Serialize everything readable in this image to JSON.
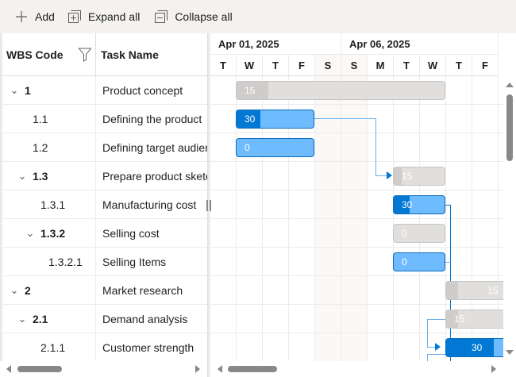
{
  "toolbar": {
    "add_label": "Add",
    "expand_all_label": "Expand all",
    "collapse_all_label": "Collapse all"
  },
  "grid": {
    "columns": [
      {
        "label": "WBS Code",
        "filter_icon": "filter-icon"
      },
      {
        "label": "Task Name"
      }
    ],
    "rows": [
      {
        "wbs": "1",
        "task": "Product concept",
        "level": 0,
        "expanded": true,
        "parent": true
      },
      {
        "wbs": "1.1",
        "task": "Defining the product",
        "level": 1,
        "parent": false
      },
      {
        "wbs": "1.2",
        "task": "Defining target audience",
        "level": 1,
        "parent": false
      },
      {
        "wbs": "1.3",
        "task": "Prepare product sketch",
        "level": 1,
        "expanded": true,
        "parent": true
      },
      {
        "wbs": "1.3.1",
        "task": "Manufacturing cost",
        "level": 2,
        "parent": false
      },
      {
        "wbs": "1.3.2",
        "task": "Selling cost",
        "level": 2,
        "expanded": true,
        "parent": true
      },
      {
        "wbs": "1.3.2.1",
        "task": "Selling Items",
        "level": 3,
        "parent": false
      },
      {
        "wbs": "2",
        "task": "Market research",
        "level": 0,
        "expanded": true,
        "parent": true
      },
      {
        "wbs": "2.1",
        "task": "Demand analysis",
        "level": 1,
        "expanded": true,
        "parent": true
      },
      {
        "wbs": "2.1.1",
        "task": "Customer strength",
        "level": 2,
        "parent": false
      }
    ]
  },
  "timeline": {
    "weeks": [
      {
        "label": "Apr 01, 2025",
        "days": 5
      },
      {
        "label": "Apr 06, 2025",
        "days": 6
      }
    ],
    "days": [
      "T",
      "W",
      "T",
      "F",
      "S",
      "S",
      "M",
      "T",
      "W",
      "T",
      "F"
    ],
    "weekend_indices": [
      4,
      5
    ]
  },
  "bars": [
    {
      "row": 0,
      "type": "parent",
      "progress": "15",
      "start": 1,
      "span": 8,
      "progress_frac": 0.15
    },
    {
      "row": 1,
      "type": "child",
      "progress": "30",
      "start": 1,
      "span": 3,
      "progress_frac": 0.3
    },
    {
      "row": 2,
      "type": "child",
      "progress": "0",
      "start": 1,
      "span": 3,
      "progress_frac": 0
    },
    {
      "row": 3,
      "type": "parent",
      "progress": "15",
      "start": 7,
      "span": 2,
      "progress_frac": 0.15
    },
    {
      "row": 4,
      "type": "child",
      "progress": "30",
      "start": 7,
      "span": 2,
      "progress_frac": 0.3
    },
    {
      "row": 5,
      "type": "parent",
      "progress": "0",
      "start": 7,
      "span": 2,
      "progress_frac": 0
    },
    {
      "row": 6,
      "type": "child",
      "progress": "0",
      "start": 7,
      "span": 2,
      "progress_frac": 0
    },
    {
      "row": 7,
      "type": "parent",
      "progress": "15",
      "start": 9,
      "span": 3,
      "progress_frac": 0.15
    },
    {
      "row": 8,
      "type": "parent",
      "progress": "15",
      "start": 9,
      "span": 3,
      "progress_frac": 0.15
    },
    {
      "row": 9,
      "type": "child",
      "progress": "30",
      "start": 9,
      "span": 3,
      "progress_frac": 0.3
    }
  ],
  "colors": {
    "accent": "#0078d4",
    "child_bar": "#6fbbff",
    "parent_bar": "#e1dfdd",
    "parent_progress": "#cfcdcb",
    "toolbar_bg": "#f3f2f1"
  }
}
